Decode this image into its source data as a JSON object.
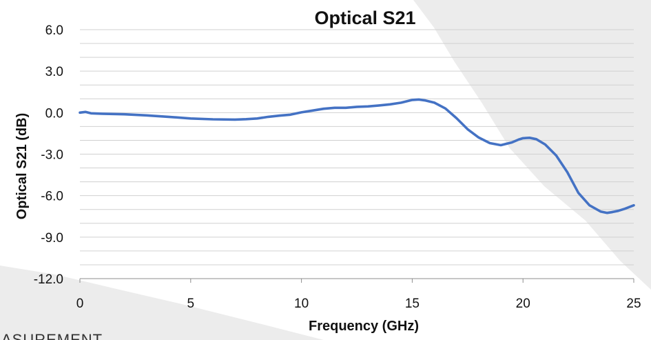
{
  "colors": {
    "series": "#4472C4",
    "grid": "#d0d0d0",
    "backdrop": "#ececec"
  },
  "background_fragment": {
    "text": "ASUREMENT"
  },
  "chart_data": {
    "type": "line",
    "title": "Optical S21",
    "xlabel": "Frequency (GHz)",
    "ylabel": "Optical S21 (dB)",
    "xlim": [
      0,
      25
    ],
    "ylim": [
      -12,
      6
    ],
    "x_ticks": [
      0,
      5,
      10,
      15,
      20,
      25
    ],
    "y_ticks": [
      "6.0",
      "3.0",
      "0.0",
      "-3.0",
      "-6.0",
      "-9.0",
      "-12.0"
    ],
    "y_minor_step": 1,
    "grid": true,
    "legend": "none",
    "series": [
      {
        "x": [
          0,
          0.25,
          0.5,
          1,
          2,
          3,
          4,
          5,
          6,
          7,
          7.5,
          8,
          8.5,
          9,
          9.5,
          10,
          10.5,
          11,
          11.5,
          12,
          12.5,
          13,
          13.5,
          14,
          14.5,
          15,
          15.3,
          15.6,
          16,
          16.5,
          17,
          17.5,
          18,
          18.5,
          19,
          19.5,
          19.8,
          20,
          20.3,
          20.6,
          21,
          21.5,
          22,
          22.5,
          23,
          23.5,
          23.8,
          24,
          24.3,
          24.6,
          25
        ],
        "y": [
          0,
          0.05,
          -0.05,
          -0.08,
          -0.12,
          -0.2,
          -0.3,
          -0.42,
          -0.48,
          -0.5,
          -0.47,
          -0.42,
          -0.3,
          -0.22,
          -0.15,
          0.02,
          0.15,
          0.28,
          0.35,
          0.35,
          0.42,
          0.45,
          0.52,
          0.6,
          0.72,
          0.92,
          0.95,
          0.88,
          0.72,
          0.3,
          -0.4,
          -1.2,
          -1.8,
          -2.2,
          -2.35,
          -2.15,
          -1.95,
          -1.85,
          -1.82,
          -1.92,
          -2.3,
          -3.1,
          -4.3,
          -5.8,
          -6.7,
          -7.15,
          -7.25,
          -7.2,
          -7.1,
          -6.95,
          -6.7
        ]
      }
    ]
  }
}
